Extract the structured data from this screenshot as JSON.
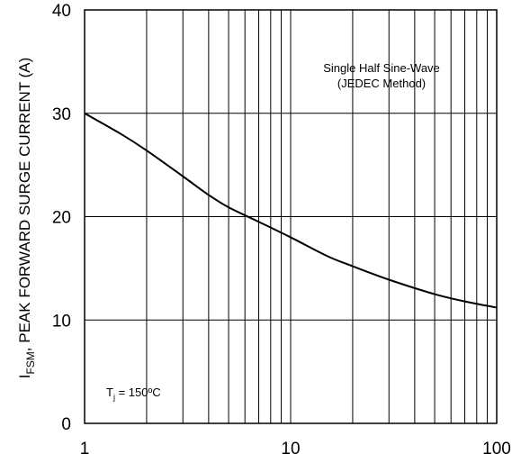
{
  "chart_data": {
    "type": "line",
    "xscale": "log",
    "xlim": [
      1,
      100
    ],
    "ylim": [
      0,
      40
    ],
    "xticks": [
      1,
      10,
      100
    ],
    "yticks": [
      0,
      10,
      20,
      30,
      40
    ],
    "grid": true,
    "ylabel": {
      "symbol": "I",
      "subscript": "FSM",
      "text": ", PEAK FORWARD SURGE CURRENT (A)"
    },
    "xlabel": "",
    "annotations": {
      "method_line1": "Single Half Sine-Wave",
      "method_line2": "(JEDEC Method)",
      "temp_symbol": "T",
      "temp_subscript": "j",
      "temp_value": " = 150ºC"
    },
    "series": [
      {
        "x": [
          1,
          1.5,
          2,
          3,
          4,
          5,
          7,
          10,
          15,
          20,
          30,
          50,
          70,
          100
        ],
        "y": [
          30.0,
          28.0,
          26.4,
          23.9,
          22.1,
          20.9,
          19.5,
          18.0,
          16.2,
          15.2,
          13.9,
          12.5,
          11.8,
          11.2
        ]
      }
    ],
    "line_color": "#000000",
    "grid_color": "#000000"
  }
}
